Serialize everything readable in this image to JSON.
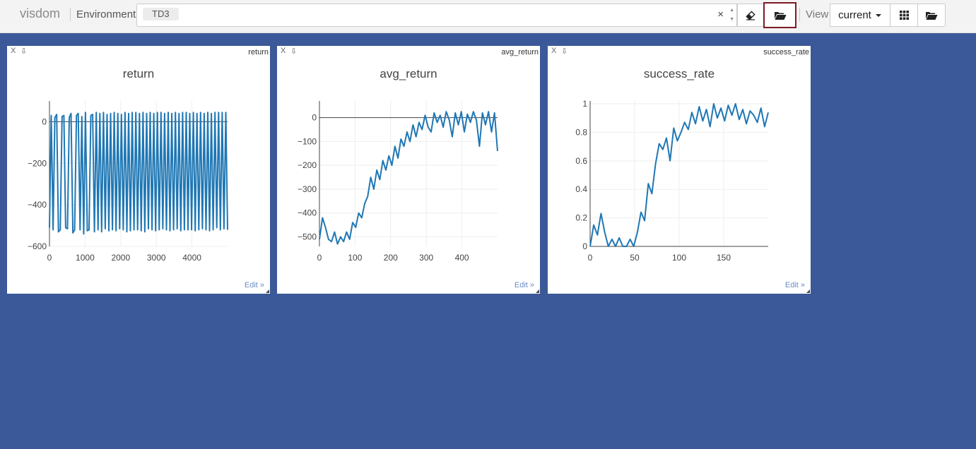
{
  "app": {
    "brand": "visdom"
  },
  "toolbar": {
    "environment_label": "Environment",
    "environment_value": "TD3",
    "clear_glyph": "×",
    "view_label": "View",
    "view_selected": "current",
    "icons": [
      "eraser-icon",
      "folder-open-icon",
      "grid-icon",
      "folder-open-icon"
    ]
  },
  "panes": [
    {
      "window_name": "return",
      "close": "X",
      "download": "⇩",
      "edit": "Edit »"
    },
    {
      "window_name": "avg_return",
      "close": "X",
      "download": "⇩",
      "edit": "Edit »"
    },
    {
      "window_name": "success_rate",
      "close": "X",
      "download": "⇩",
      "edit": "Edit »"
    }
  ],
  "colors": {
    "background": "#3b5998",
    "line": "#1f77b4",
    "highlight_border": "#7b1b23"
  },
  "chart_data": [
    {
      "type": "line",
      "title": "return",
      "xlim": [
        0,
        5000
      ],
      "ylim": [
        -600,
        100
      ],
      "xticks": [
        0,
        1000,
        2000,
        3000,
        4000
      ],
      "yticks": [
        0,
        -200,
        -400,
        -600
      ],
      "ytick_labels": [
        "0",
        "−200",
        "−400",
        "−600"
      ],
      "series": [
        {
          "y": [
            -510,
            30,
            -520,
            20,
            35,
            -530,
            -520,
            25,
            30,
            -510,
            -515,
            20,
            40,
            -535,
            -520,
            30,
            40,
            -520,
            25,
            -540,
            45,
            -525,
            -520,
            30,
            35,
            -530,
            45,
            -520,
            40,
            -530,
            45,
            -515,
            35,
            -525,
            40,
            -520,
            45,
            -525,
            40,
            -515,
            35,
            -520,
            45,
            -530,
            40,
            -525,
            45,
            -520,
            45,
            -520,
            40,
            -525,
            45,
            -530,
            40,
            -515,
            45,
            -520,
            40,
            -525,
            45,
            -520,
            45,
            -515,
            40,
            -520,
            45,
            -525,
            40,
            -520,
            45,
            -515,
            40,
            -525,
            45,
            -520,
            45,
            -520,
            40,
            -520,
            45,
            -525,
            40,
            -520,
            45,
            -515,
            40,
            -520,
            45,
            -525,
            40,
            -520,
            45,
            -510,
            45,
            -520,
            45,
            -515,
            45,
            -520
          ]
        }
      ]
    },
    {
      "type": "line",
      "title": "avg_return",
      "xlim": [
        0,
        500
      ],
      "ylim": [
        -540,
        70
      ],
      "xticks": [
        0,
        100,
        200,
        300,
        400
      ],
      "yticks": [
        0,
        -100,
        -200,
        -300,
        -400,
        -500
      ],
      "ytick_labels": [
        "0",
        "−100",
        "−200",
        "−300",
        "−400",
        "−500"
      ],
      "series": [
        {
          "y": [
            -510,
            -420,
            -460,
            -510,
            -520,
            -480,
            -530,
            -500,
            -520,
            -480,
            -510,
            -440,
            -460,
            -400,
            -420,
            -360,
            -330,
            -250,
            -300,
            -220,
            -260,
            -180,
            -220,
            -160,
            -200,
            -120,
            -170,
            -90,
            -120,
            -60,
            -100,
            -30,
            -80,
            -20,
            -50,
            10,
            -40,
            -60,
            20,
            -20,
            10,
            -40,
            25,
            -10,
            -80,
            20,
            -30,
            25,
            -60,
            15,
            -20,
            25,
            -10,
            -120,
            20,
            -30,
            25,
            -60,
            20,
            -140
          ]
        }
      ]
    },
    {
      "type": "line",
      "title": "success_rate",
      "xlim": [
        0,
        200
      ],
      "ylim": [
        0,
        1.02
      ],
      "xticks": [
        0,
        50,
        100,
        150
      ],
      "yticks": [
        0,
        0.2,
        0.4,
        0.6,
        0.8,
        1
      ],
      "ytick_labels": [
        "0",
        "0.2",
        "0.4",
        "0.6",
        "0.8",
        "1"
      ],
      "series": [
        {
          "y": [
            0,
            0.15,
            0.08,
            0.23,
            0.1,
            0,
            0.05,
            0,
            0.06,
            0,
            0,
            0.05,
            0,
            0.1,
            0.24,
            0.18,
            0.44,
            0.37,
            0.58,
            0.72,
            0.68,
            0.76,
            0.6,
            0.83,
            0.74,
            0.8,
            0.87,
            0.82,
            0.94,
            0.86,
            0.98,
            0.88,
            0.96,
            0.84,
            1.0,
            0.9,
            0.97,
            0.88,
            0.99,
            0.92,
            1.0,
            0.89,
            0.96,
            0.86,
            0.95,
            0.92,
            0.87,
            0.97,
            0.84,
            0.94
          ]
        }
      ]
    }
  ]
}
